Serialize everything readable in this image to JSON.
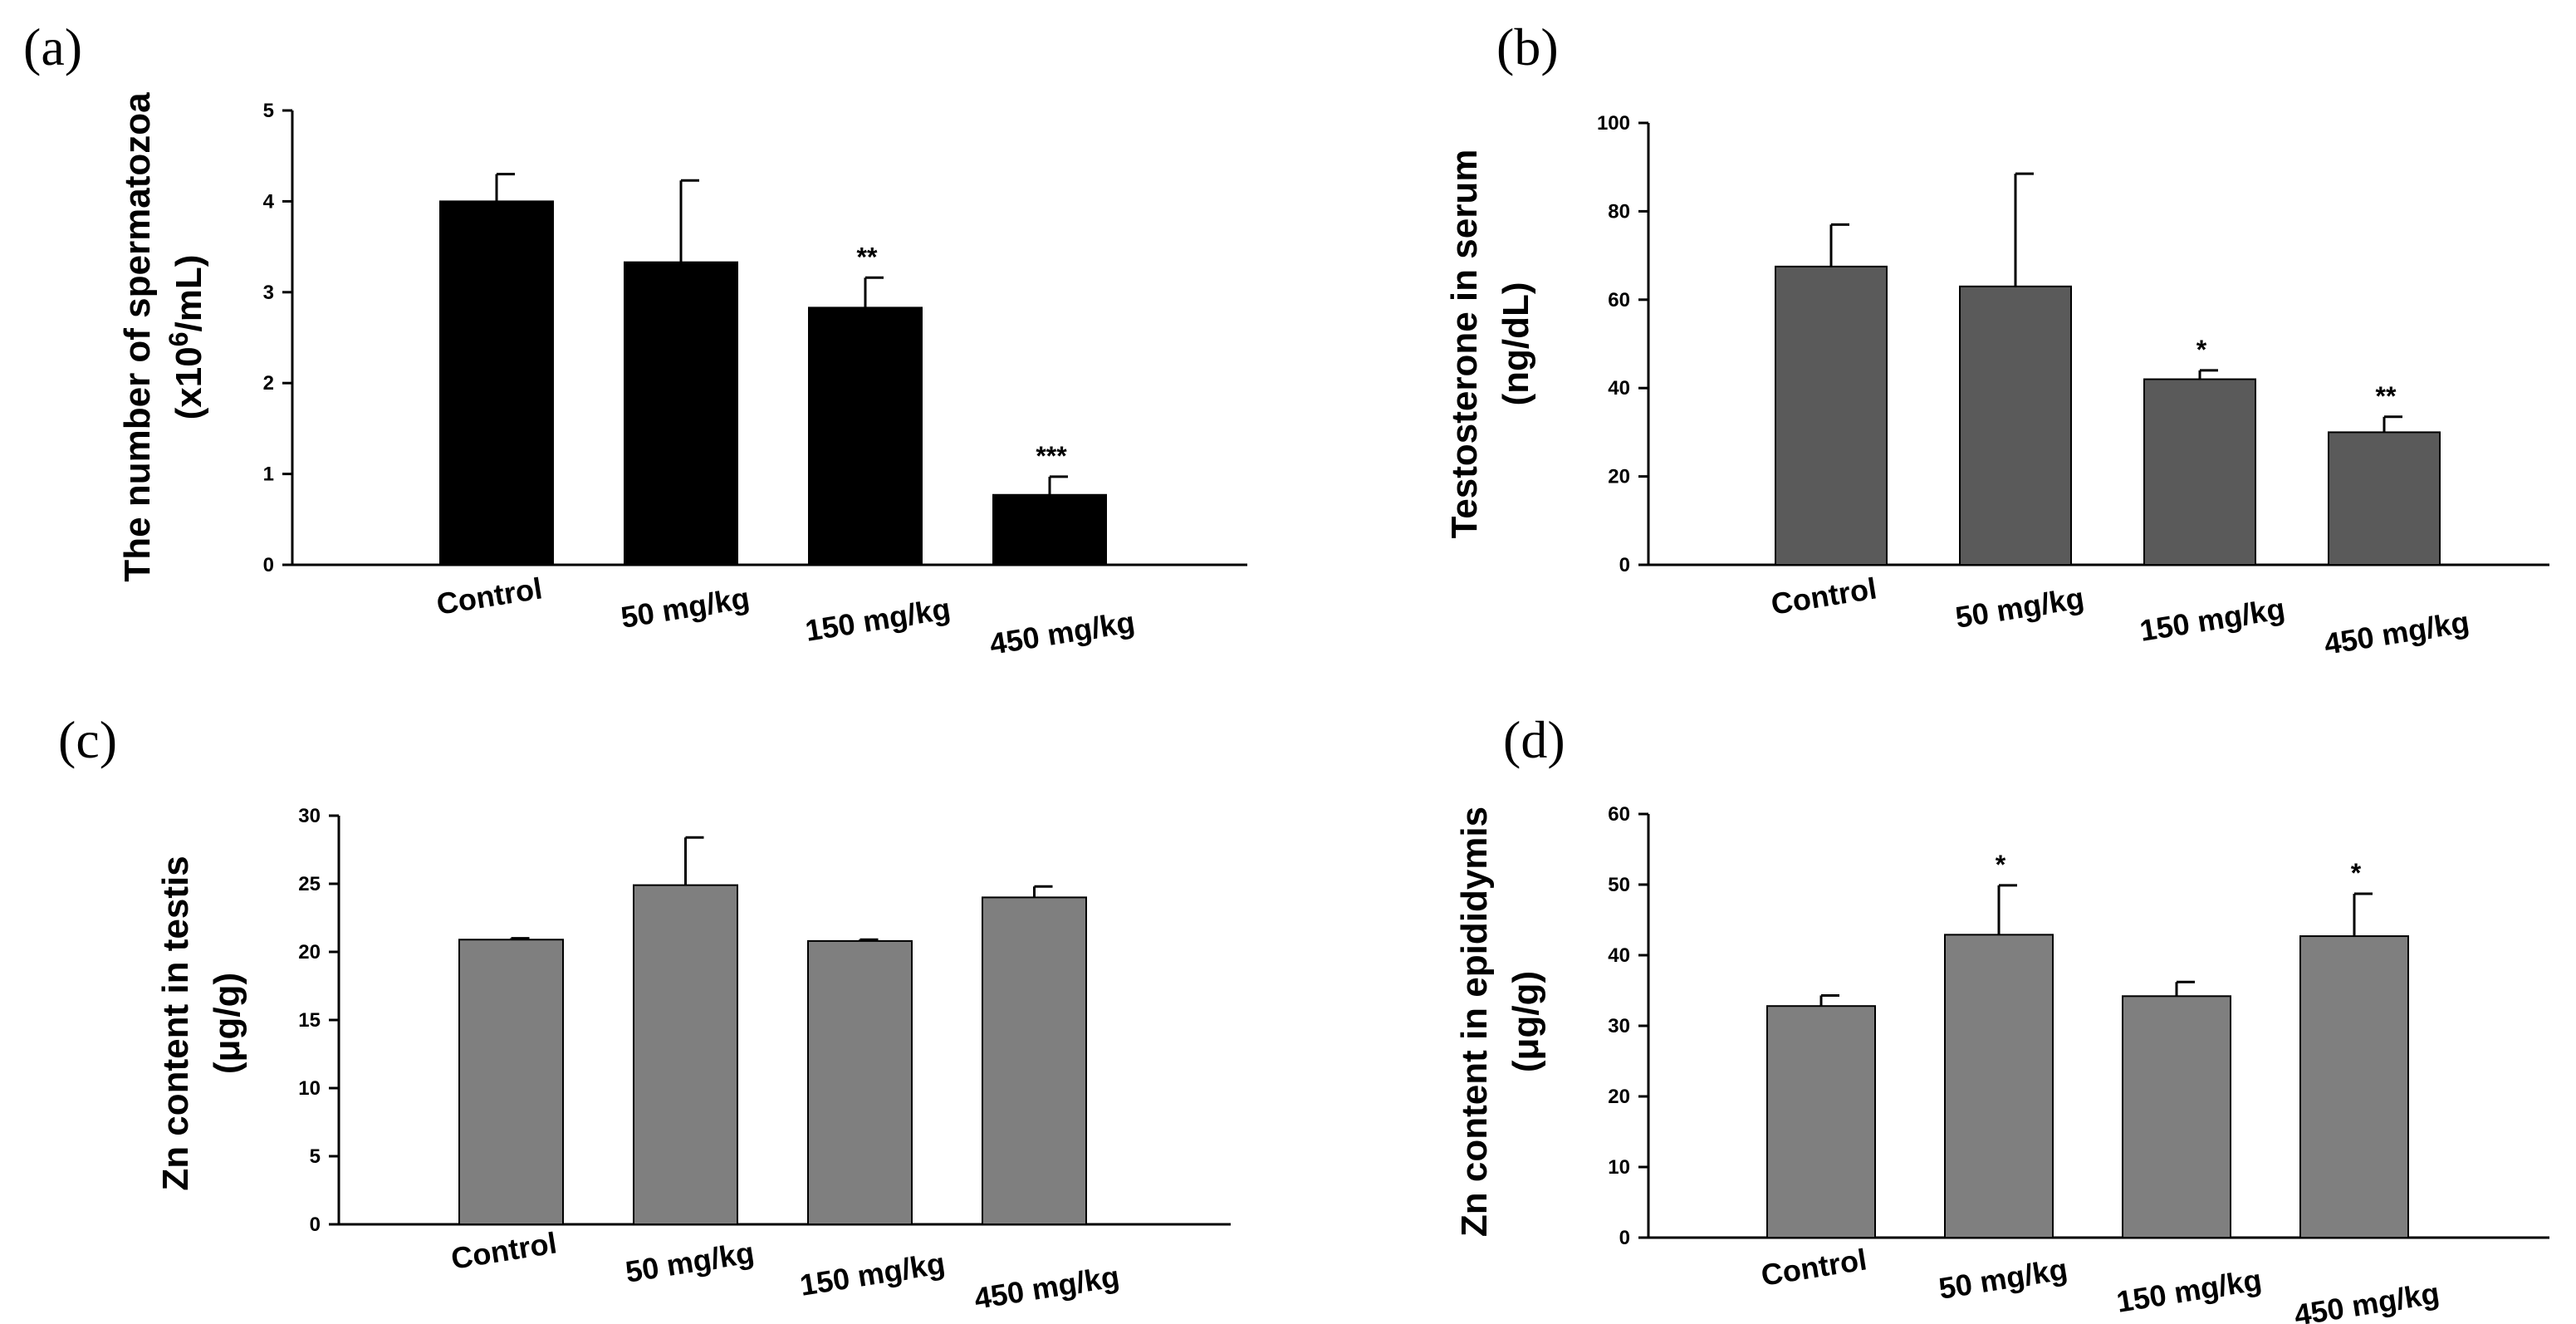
{
  "chart_data": [
    {
      "type": "bar",
      "panel": "(a)",
      "categories": [
        "Control",
        "50 mg/kg",
        "150 mg/kg",
        "450 mg/kg"
      ],
      "values": [
        4.0,
        3.33,
        2.83,
        0.77
      ],
      "errors": [
        0.3,
        0.9,
        0.33,
        0.2
      ],
      "significance": [
        "",
        "",
        "**",
        "***"
      ],
      "ylim": [
        0,
        5
      ],
      "yticks": [
        0,
        1,
        2,
        3,
        4,
        5
      ],
      "ylabel_line1": "The number of spermatozoa",
      "ylabel_line2_prefix": "(x10",
      "ylabel_line2_sup": "6",
      "ylabel_line2_suffix": "/mL)",
      "bar_color": "#000000"
    },
    {
      "type": "bar",
      "panel": "(b)",
      "categories": [
        "Control",
        "50 mg/kg",
        "150 mg/kg",
        "450 mg/kg"
      ],
      "values": [
        67.5,
        63.0,
        42.0,
        30.0
      ],
      "errors": [
        9.5,
        25.5,
        2.0,
        3.5
      ],
      "significance": [
        "",
        "",
        "*",
        "**"
      ],
      "ylim": [
        0,
        100
      ],
      "yticks": [
        0,
        20,
        40,
        60,
        80,
        100
      ],
      "ylabel_line1": "Testosterone in serum",
      "ylabel_line2": "(ng/dL)",
      "bar_color": "#5a5a5a"
    },
    {
      "type": "bar",
      "panel": "(c)",
      "categories": [
        "Control",
        "50 mg/kg",
        "150 mg/kg",
        "450 mg/kg"
      ],
      "values": [
        20.9,
        24.9,
        20.8,
        24.0
      ],
      "errors": [
        0.1,
        3.5,
        0.1,
        0.8
      ],
      "significance": [
        "",
        "",
        "",
        ""
      ],
      "ylim": [
        0,
        30
      ],
      "yticks": [
        0,
        5,
        10,
        15,
        20,
        25,
        30
      ],
      "ylabel_line1": "Zn content in testis",
      "ylabel_line2": "(μg/g)",
      "bar_color": "#7f7f7f"
    },
    {
      "type": "bar",
      "panel": "(d)",
      "categories": [
        "Control",
        "50 mg/kg",
        "150 mg/kg",
        "450 mg/kg"
      ],
      "values": [
        32.8,
        42.9,
        34.2,
        42.7
      ],
      "errors": [
        1.5,
        7.0,
        2.0,
        6.0
      ],
      "significance": [
        "",
        "*",
        "",
        "*"
      ],
      "ylim": [
        0,
        60
      ],
      "yticks": [
        0,
        10,
        20,
        30,
        40,
        50,
        60
      ],
      "ylabel_line1": "Zn content in epididymis",
      "ylabel_line2": "(μg/g)",
      "bar_color": "#7f7f7f"
    }
  ]
}
